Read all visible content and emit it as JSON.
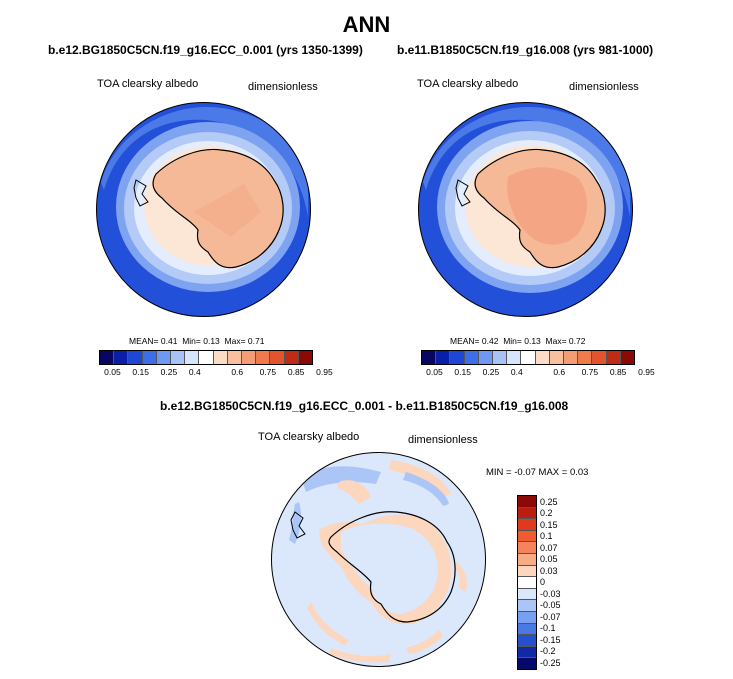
{
  "page_title": "ANN",
  "colors": {
    "albedo_levels": [
      "#08065f",
      "#0a1fa8",
      "#1e47d6",
      "#3c6ee8",
      "#6f99f0",
      "#a6c2f7",
      "#d6e4fc",
      "#ffffff",
      "#fcdcc4",
      "#f9c0a0",
      "#f49c74",
      "#ef7a4c",
      "#e3532e",
      "#bf2b14",
      "#8b0a05"
    ],
    "diff_levels": [
      "#8b0a05",
      "#b91e10",
      "#dd3a1f",
      "#f05b30",
      "#f3845c",
      "#f7ab87",
      "#fcd6bd",
      "#ffffff",
      "#dbe8fc",
      "#abc6f6",
      "#789ff0",
      "#4a79e3",
      "#2750cc",
      "#0f2aa4",
      "#06086a"
    ]
  },
  "panels": [
    {
      "case_title": "b.e12.BG1850C5CN.f19_g16.ECC_0.001 (yrs 1350-1399)",
      "variable": "TOA clearsky albedo",
      "units": "dimensionless",
      "stats": {
        "mean_label": "MEAN=",
        "mean": "0.41",
        "min_label": "Min=",
        "min": "0.13",
        "max_label": "Max=",
        "max": "0.71"
      }
    },
    {
      "case_title": "b.e11.B1850C5CN.f19_g16.008 (yrs 981-1000)",
      "variable": "TOA clearsky albedo",
      "units": "dimensionless",
      "stats": {
        "mean_label": "MEAN=",
        "mean": "0.42",
        "min_label": "Min=",
        "min": "0.13",
        "max_label": "Max=",
        "max": "0.72"
      }
    }
  ],
  "albedo_colorbar_labels": [
    "0.05",
    "0.15",
    "0.25",
    "0.4",
    "0.6",
    "0.75",
    "0.85",
    "0.95"
  ],
  "difference": {
    "title": "b.e12.BG1850C5CN.f19_g16.ECC_0.001 - b.e11.B1850C5CN.f19_g16.008",
    "variable": "TOA clearsky albedo",
    "units": "dimensionless",
    "minmax": "MIN = -0.07 MAX =  0.03",
    "colorbar_labels": [
      "0.25",
      "0.2",
      "0.15",
      "0.1",
      "0.07",
      "0.05",
      "0.03",
      "0",
      "-0.03",
      "-0.05",
      "-0.07",
      "-0.1",
      "-0.15",
      "-0.2",
      "-0.25"
    ]
  }
}
